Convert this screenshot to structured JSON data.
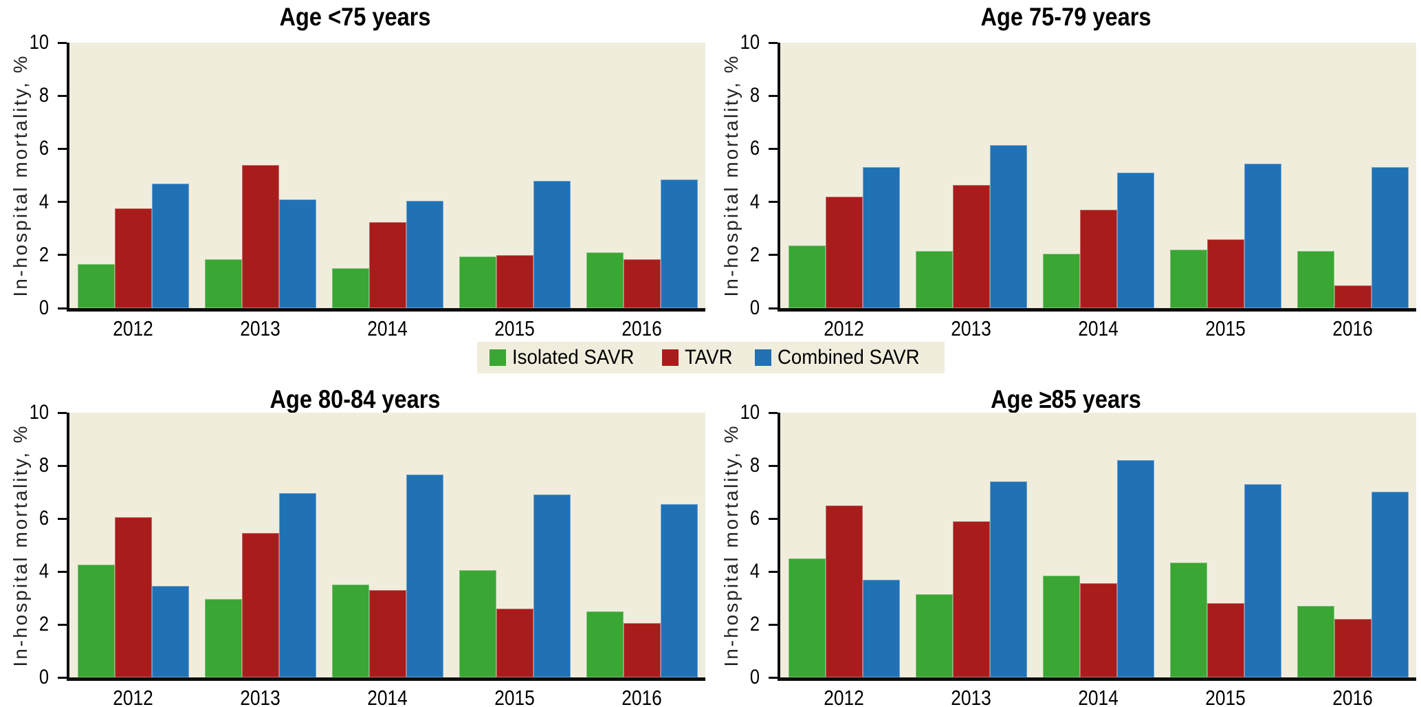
{
  "figure": {
    "y_axis_label": "In-hospital mortality, %",
    "y_ticks": [
      0,
      2,
      4,
      6,
      8,
      10
    ],
    "years": [
      "2012",
      "2013",
      "2014",
      "2015",
      "2016"
    ],
    "layout": "four bar-chart panels in a 2x2 grid, shared legend centered between the two rows"
  },
  "legend": {
    "background": "#f0eddc",
    "items": [
      {
        "label": "Isolated SAVR",
        "color": "#3aa633"
      },
      {
        "label": "TAVR",
        "color": "#a81d1b"
      },
      {
        "label": "Combined SAVR",
        "color": "#2171b5"
      }
    ]
  },
  "colors": {
    "plot_background": "#f0eddc",
    "axis": "#0d0d0d",
    "green": "#3aa633",
    "red": "#a81d1b",
    "blue": "#2171b5"
  },
  "chart_data": [
    {
      "type": "bar",
      "title": "Age <75 years",
      "categories": [
        "2012",
        "2013",
        "2014",
        "2015",
        "2016"
      ],
      "series": [
        {
          "name": "Isolated SAVR",
          "color": "#3aa633",
          "values": [
            1.65,
            1.85,
            1.5,
            1.95,
            2.1
          ]
        },
        {
          "name": "TAVR",
          "color": "#a81d1b",
          "values": [
            3.75,
            5.4,
            3.25,
            2.0,
            1.85
          ]
        },
        {
          "name": "Combined SAVR",
          "color": "#2171b5",
          "values": [
            4.7,
            4.1,
            4.05,
            4.8,
            4.85
          ]
        }
      ],
      "xlabel": "",
      "ylabel": "In-hospital mortality, %",
      "ylim": [
        0,
        10
      ],
      "grid": false,
      "legend_position": "shared, centered below top row"
    },
    {
      "type": "bar",
      "title": "Age 75-79 years",
      "categories": [
        "2012",
        "2013",
        "2014",
        "2015",
        "2016"
      ],
      "series": [
        {
          "name": "Isolated SAVR",
          "color": "#3aa633",
          "values": [
            2.35,
            2.15,
            2.05,
            2.2,
            2.15
          ]
        },
        {
          "name": "TAVR",
          "color": "#a81d1b",
          "values": [
            4.2,
            4.65,
            3.7,
            2.6,
            0.85
          ]
        },
        {
          "name": "Combined SAVR",
          "color": "#2171b5",
          "values": [
            5.3,
            6.15,
            5.1,
            5.45,
            5.3
          ]
        }
      ],
      "xlabel": "",
      "ylabel": "In-hospital mortality, %",
      "ylim": [
        0,
        10
      ],
      "grid": false,
      "legend_position": "shared, centered below top row"
    },
    {
      "type": "bar",
      "title": "Age 80-84 years",
      "categories": [
        "2012",
        "2013",
        "2014",
        "2015",
        "2016"
      ],
      "series": [
        {
          "name": "Isolated SAVR",
          "color": "#3aa633",
          "values": [
            4.25,
            2.95,
            3.5,
            4.05,
            2.5
          ]
        },
        {
          "name": "TAVR",
          "color": "#a81d1b",
          "values": [
            6.05,
            5.45,
            3.3,
            2.6,
            2.05
          ]
        },
        {
          "name": "Combined SAVR",
          "color": "#2171b5",
          "values": [
            3.45,
            6.95,
            7.65,
            6.9,
            6.55
          ]
        }
      ],
      "xlabel": "",
      "ylabel": "In-hospital mortality, %",
      "ylim": [
        0,
        10
      ],
      "grid": false,
      "legend_position": "shared, centered above bottom row"
    },
    {
      "type": "bar",
      "title": "Age ≥85 years",
      "categories": [
        "2012",
        "2013",
        "2014",
        "2015",
        "2016"
      ],
      "series": [
        {
          "name": "Isolated SAVR",
          "color": "#3aa633",
          "values": [
            4.5,
            3.15,
            3.85,
            4.35,
            2.7
          ]
        },
        {
          "name": "TAVR",
          "color": "#a81d1b",
          "values": [
            6.5,
            5.9,
            3.55,
            2.8,
            2.2
          ]
        },
        {
          "name": "Combined SAVR",
          "color": "#2171b5",
          "values": [
            3.7,
            7.4,
            8.2,
            7.3,
            7.0
          ]
        }
      ],
      "xlabel": "",
      "ylabel": "In-hospital mortality, %",
      "ylim": [
        0,
        10
      ],
      "grid": false,
      "legend_position": "shared, centered above bottom row"
    }
  ]
}
